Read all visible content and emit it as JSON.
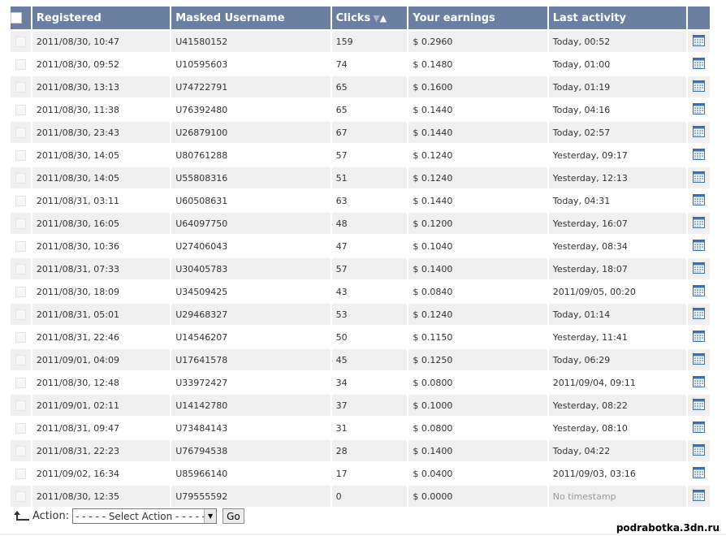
{
  "table": {
    "headers": {
      "registered": "Registered",
      "username": "Masked Username",
      "clicks": "Clicks",
      "earnings": "Your earnings",
      "last_activity": "Last activity"
    },
    "sort_arrows": {
      "down": "▼",
      "up": "▲"
    },
    "rows": [
      {
        "registered": "2011/08/30, 10:47",
        "username": "U41580152",
        "clicks": "159",
        "earnings": "$ 0.2960",
        "last": "Today, 00:52"
      },
      {
        "registered": "2011/08/30, 09:52",
        "username": "U10595603",
        "clicks": "74",
        "earnings": "$ 0.1480",
        "last": "Today, 01:00"
      },
      {
        "registered": "2011/08/30, 13:13",
        "username": "U74722791",
        "clicks": "65",
        "earnings": "$ 0.1600",
        "last": "Today, 01:19"
      },
      {
        "registered": "2011/08/30, 11:38",
        "username": "U76392480",
        "clicks": "65",
        "earnings": "$ 0.1440",
        "last": "Today, 04:16"
      },
      {
        "registered": "2011/08/30, 23:43",
        "username": "U26879100",
        "clicks": "67",
        "earnings": "$ 0.1440",
        "last": "Today, 02:57"
      },
      {
        "registered": "2011/08/30, 14:05",
        "username": "U80761288",
        "clicks": "57",
        "earnings": "$ 0.1240",
        "last": "Yesterday, 09:17"
      },
      {
        "registered": "2011/08/30, 14:05",
        "username": "U55808316",
        "clicks": "51",
        "earnings": "$ 0.1240",
        "last": "Yesterday, 12:13"
      },
      {
        "registered": "2011/08/31, 03:11",
        "username": "U60508631",
        "clicks": "63",
        "earnings": "$ 0.1440",
        "last": "Today, 04:31"
      },
      {
        "registered": "2011/08/30, 16:05",
        "username": "U64097750",
        "clicks": "48",
        "earnings": "$ 0.1200",
        "last": "Yesterday, 16:07"
      },
      {
        "registered": "2011/08/30, 10:36",
        "username": "U27406043",
        "clicks": "47",
        "earnings": "$ 0.1040",
        "last": "Yesterday, 08:34"
      },
      {
        "registered": "2011/08/31, 07:33",
        "username": "U30405783",
        "clicks": "57",
        "earnings": "$ 0.1400",
        "last": "Yesterday, 18:07"
      },
      {
        "registered": "2011/08/30, 18:09",
        "username": "U34509425",
        "clicks": "43",
        "earnings": "$ 0.0840",
        "last": "2011/09/05, 00:20"
      },
      {
        "registered": "2011/08/31, 05:01",
        "username": "U29468327",
        "clicks": "53",
        "earnings": "$ 0.1240",
        "last": "Today, 01:14"
      },
      {
        "registered": "2011/08/31, 22:46",
        "username": "U14546207",
        "clicks": "50",
        "earnings": "$ 0.1150",
        "last": "Yesterday, 11:41"
      },
      {
        "registered": "2011/09/01, 04:09",
        "username": "U17641578",
        "clicks": "45",
        "earnings": "$ 0.1250",
        "last": "Today, 06:29"
      },
      {
        "registered": "2011/08/30, 12:48",
        "username": "U33972427",
        "clicks": "34",
        "earnings": "$ 0.0800",
        "last": "2011/09/04, 09:11"
      },
      {
        "registered": "2011/09/01, 02:11",
        "username": "U14142780",
        "clicks": "37",
        "earnings": "$ 0.1000",
        "last": "Yesterday, 08:22"
      },
      {
        "registered": "2011/08/31, 09:47",
        "username": "U73484143",
        "clicks": "31",
        "earnings": "$ 0.0800",
        "last": "Yesterday, 08:10"
      },
      {
        "registered": "2011/08/31, 22:23",
        "username": "U76794538",
        "clicks": "28",
        "earnings": "$ 0.1400",
        "last": "Today, 04:22"
      },
      {
        "registered": "2011/09/02, 16:34",
        "username": "U85966140",
        "clicks": "17",
        "earnings": "$ 0.0400",
        "last": "2011/09/03, 03:16"
      },
      {
        "registered": "2011/08/30, 12:35",
        "username": "U79555592",
        "clicks": "0",
        "earnings": "$ 0.0000",
        "last": "No timestamp",
        "last_muted": true
      }
    ]
  },
  "row_icon": "calendar-stats-icon",
  "action_bar": {
    "label": "Action:",
    "select_value": "- - - - - Select Action - - - - -",
    "go_label": "Go"
  },
  "watermark": "podrabotka.3dn.ru",
  "colors": {
    "header_bg": "#6b7fa3",
    "row_alt_bg": "#f0f0f0",
    "text": "#333333",
    "muted_text": "#999999"
  }
}
